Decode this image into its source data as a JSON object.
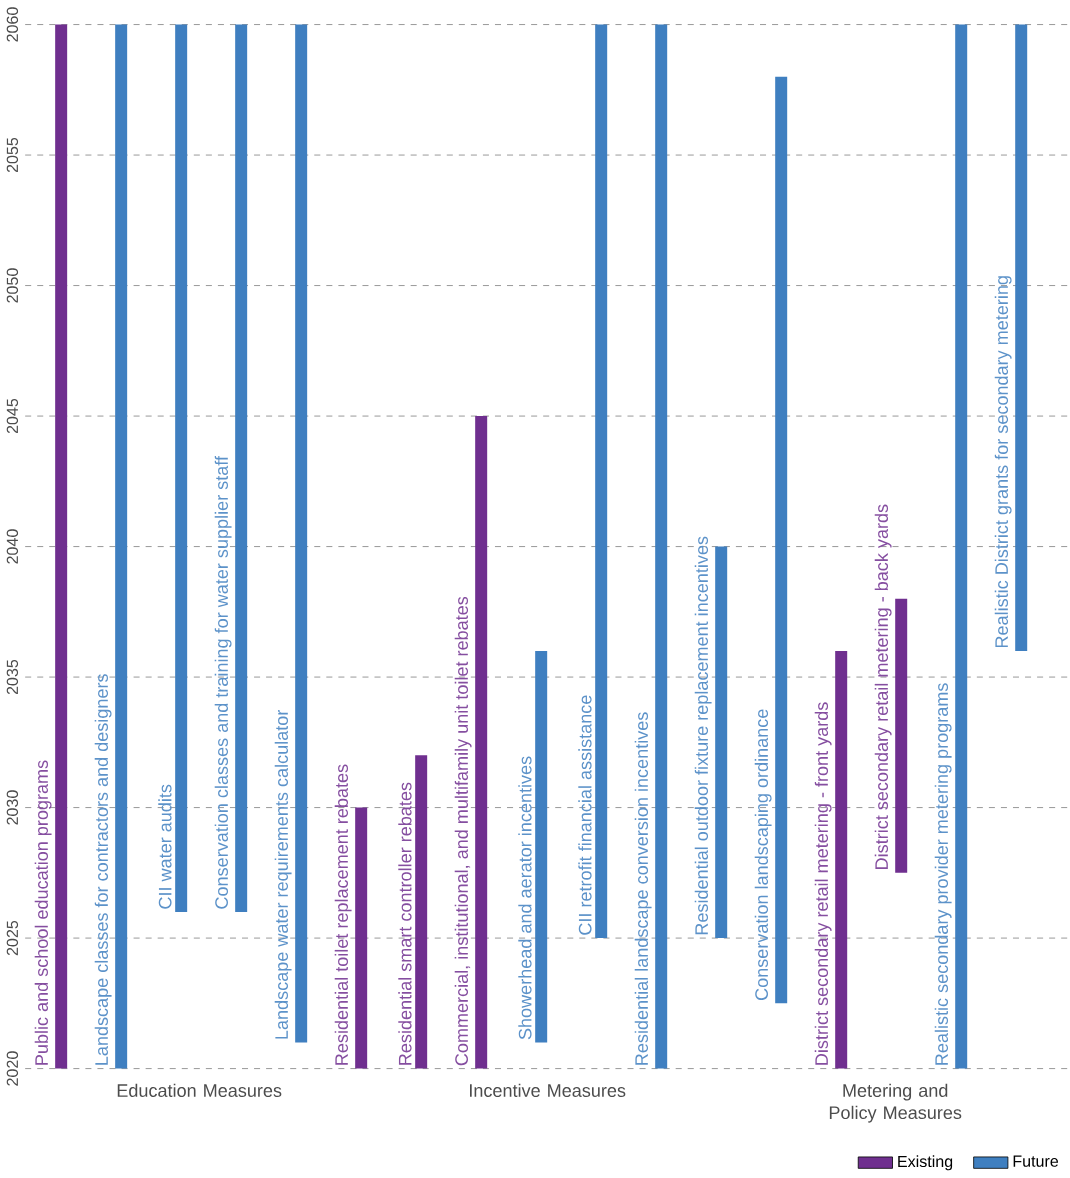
{
  "chart_data": {
    "type": "bar",
    "categories": [
      "Public and school education programs",
      "Landscape classes for contractors and designers",
      "CII water audits",
      "Conservation classes and training for water supplier staff",
      "Landscape water requirements calculator",
      "Residential toilet replacement rebates",
      "Residential smart controller rebates",
      "Commercial, institutional, and multifamily unit toilet rebates",
      "Showerhead and aerator incentives",
      "CII retrofit financial assistance",
      "Residential landscape conversion incentives",
      "Residential outdoor fixture replacement incentives",
      "Conservation landscaping ordinance",
      "District secondary retail metering - front yards",
      "District secondary retail metering - back yards",
      "Realistic secondary provider metering programs",
      "Realistic District grants for secondary metering"
    ],
    "series": [
      {
        "name": "Existing",
        "color": "#6f2f8f",
        "base": [
          2020,
          null,
          null,
          null,
          null,
          2020,
          2020,
          2020,
          null,
          null,
          null,
          null,
          null,
          2020,
          2027.5,
          null,
          null
        ],
        "values": [
          40,
          null,
          null,
          null,
          null,
          10,
          12,
          25,
          null,
          null,
          null,
          null,
          null,
          16,
          10.5,
          null,
          null
        ]
      },
      {
        "name": "Future",
        "color": "#3f7fc0",
        "base": [
          null,
          2020,
          2026,
          2026,
          2021,
          null,
          null,
          null,
          2021,
          2025,
          2020,
          2025,
          2022.5,
          null,
          null,
          2020,
          2036
        ],
        "values": [
          null,
          40,
          34,
          34,
          39,
          null,
          null,
          null,
          15,
          35,
          40,
          15,
          35.5,
          null,
          null,
          40,
          24
        ]
      }
    ],
    "ylim": [
      2020,
      2060
    ],
    "yticks": [
      2020,
      2025,
      2030,
      2035,
      2040,
      2045,
      2050,
      2055,
      2060
    ],
    "grid": "y",
    "legend": "bottom right",
    "annotations": [
      "Education Measures",
      "Incentive Measures",
      "Metering and Policy Measures"
    ]
  }
}
